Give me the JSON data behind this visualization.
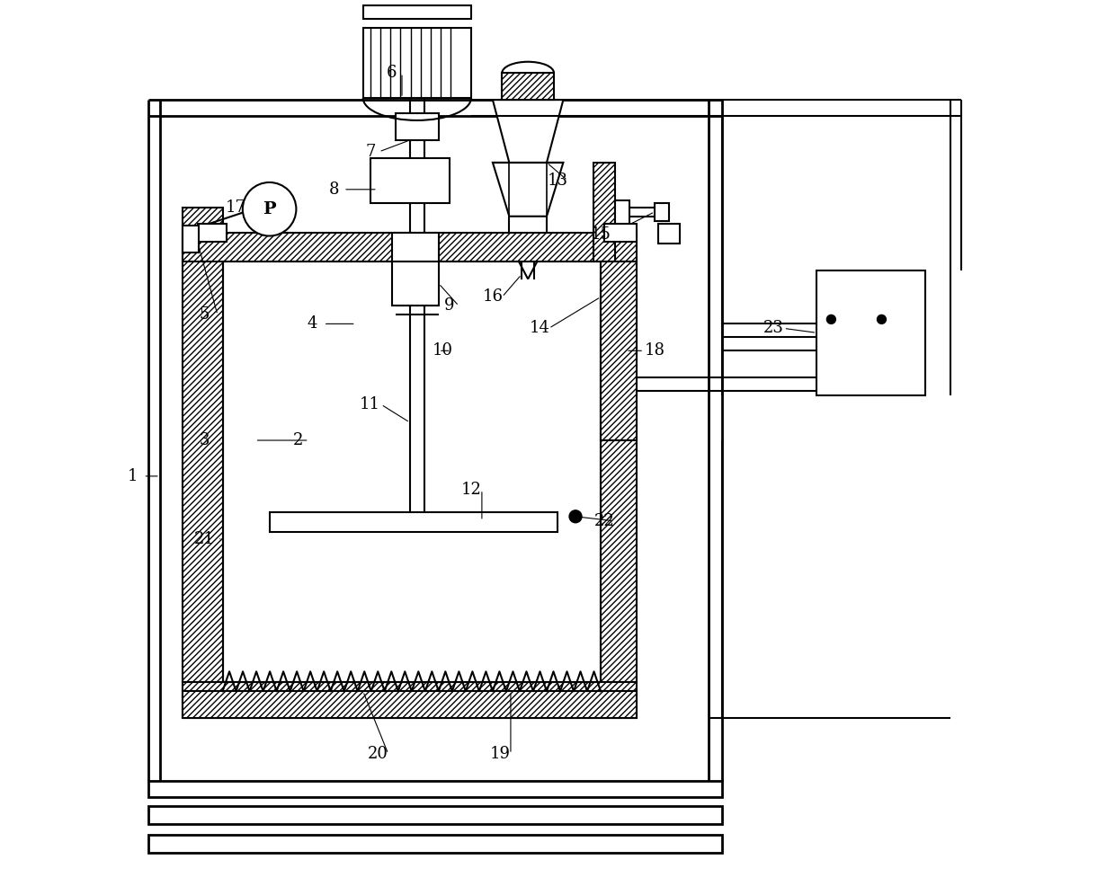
{
  "bg_color": "#ffffff",
  "fig_width": 12.4,
  "fig_height": 9.96
}
